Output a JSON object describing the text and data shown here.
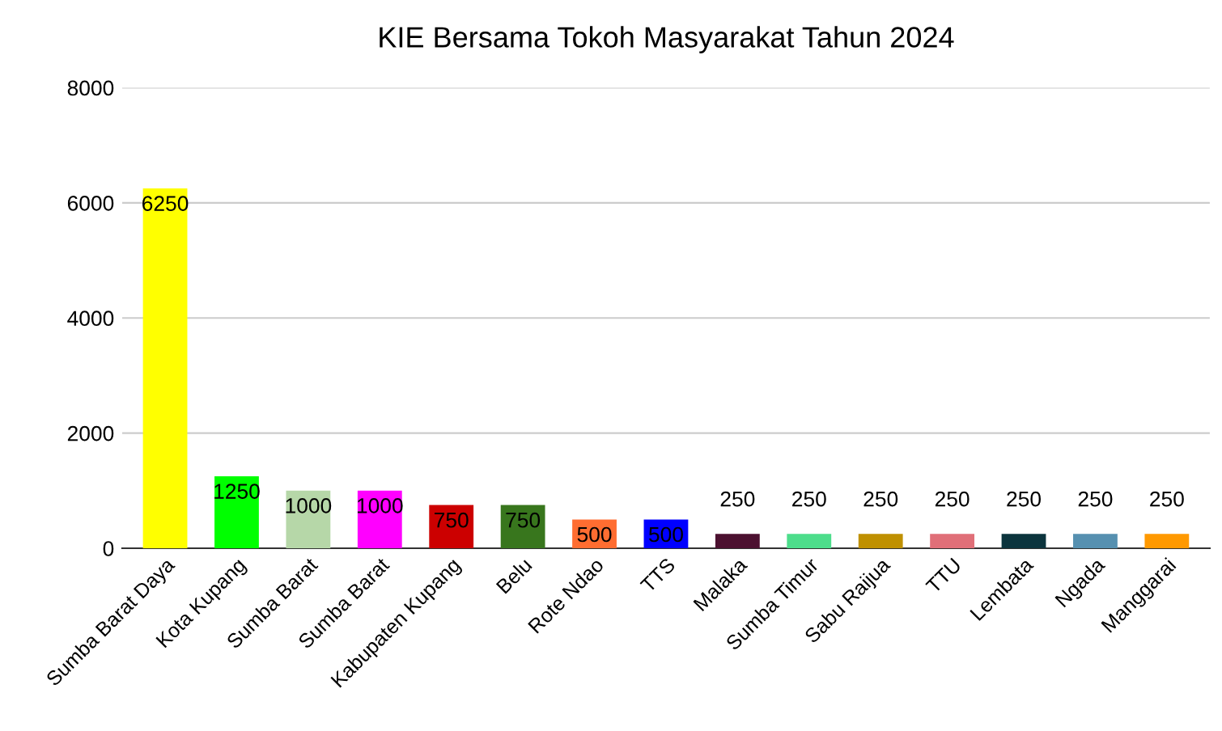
{
  "chart_data": {
    "type": "bar",
    "title": "KIE Bersama Tokoh Masyarakat Tahun 2024",
    "categories": [
      "Sumba Barat Daya",
      "Kota Kupang",
      "Sumba Barat",
      "Sumba Barat",
      "Kabupaten Kupang",
      "Belu",
      "Rote Ndao",
      "TTS",
      "Malaka",
      "Sumba Timur",
      "Sabu Raijua",
      "TTU",
      "Lembata",
      "Ngada",
      "Manggarai"
    ],
    "values": [
      6250,
      1250,
      1000,
      1000,
      750,
      750,
      500,
      500,
      250,
      250,
      250,
      250,
      250,
      250,
      250
    ],
    "colors": [
      "#ffff00",
      "#00ff00",
      "#b6d7a8",
      "#ff00ff",
      "#cc0000",
      "#38761d",
      "#ff6d31",
      "#0000ff",
      "#4c1130",
      "#4ddd8b",
      "#bf9000",
      "#e06f78",
      "#0c343d",
      "#5690b0",
      "#ff9900"
    ],
    "ylim": [
      0,
      8000
    ],
    "yticks": [
      0,
      2000,
      4000,
      6000,
      8000
    ],
    "grid": "y",
    "data_labels": true
  }
}
